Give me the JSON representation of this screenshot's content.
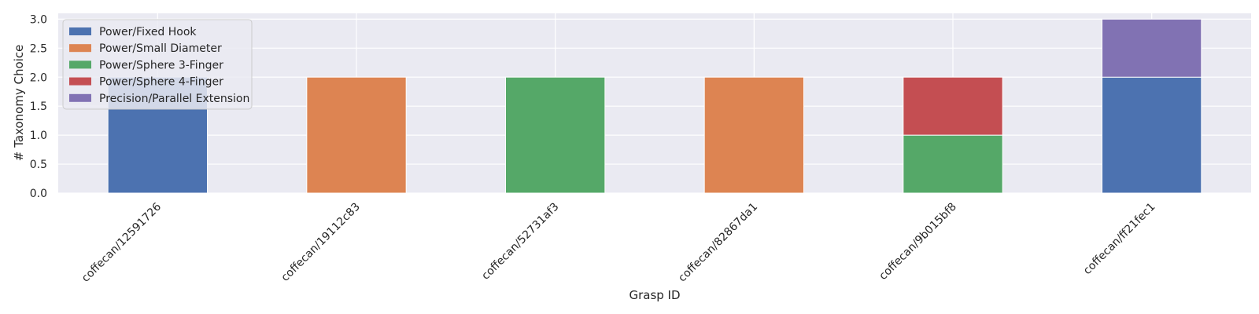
{
  "chart_data": {
    "type": "bar",
    "stacked": true,
    "categories": [
      "coffecan/12591726",
      "coffecan/19112c83",
      "coffecan/52731af3",
      "coffecan/82867da1",
      "coffecan/9b015bf8",
      "coffecan/ff21fec1"
    ],
    "series": [
      {
        "name": "Power/Fixed Hook",
        "color": "#4c72b0",
        "values": [
          2,
          0,
          0,
          0,
          0,
          2
        ]
      },
      {
        "name": "Power/Small Diameter",
        "color": "#dd8452",
        "values": [
          0,
          2,
          0,
          2,
          0,
          0
        ]
      },
      {
        "name": "Power/Sphere 3-Finger",
        "color": "#55a868",
        "values": [
          0,
          0,
          2,
          0,
          1,
          0
        ]
      },
      {
        "name": "Power/Sphere 4-Finger",
        "color": "#c44e52",
        "values": [
          0,
          0,
          0,
          0,
          1,
          0
        ]
      },
      {
        "name": "Precision/Parallel Extension",
        "color": "#8172b3",
        "values": [
          0,
          0,
          0,
          0,
          0,
          1
        ]
      }
    ],
    "xlabel": "Grasp ID",
    "ylabel": "# Taxonomy Choice",
    "ylim": [
      0,
      3.1
    ],
    "yticks": [
      "0.0",
      "0.5",
      "1.0",
      "1.5",
      "2.0",
      "2.5",
      "3.0"
    ],
    "grid": true,
    "legend_position": "top-left",
    "background_color": "#eaeaf2",
    "grid_color": "#ffffff"
  }
}
